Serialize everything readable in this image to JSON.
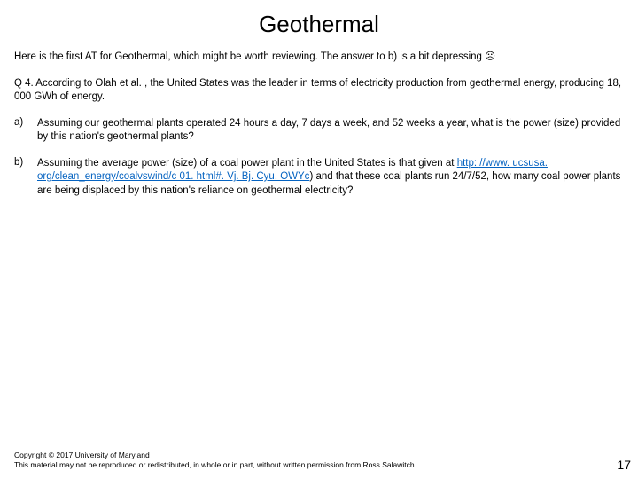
{
  "title": "Geothermal",
  "intro": "Here is the first AT for Geothermal, which might be worth reviewing.  The answer to b) is a bit depressing ☹",
  "question": "Q 4.  According to Olah et al. , the United States was the leader in terms of electricity production from geothermal energy, producing 18, 000 GWh of energy.",
  "partA": {
    "label": "a)",
    "text": "Assuming our geothermal plants operated 24 hours a day, 7 days a week, and 52 weeks a year, what is the power (size) provided by this nation's geothermal plants?"
  },
  "partB": {
    "label": "b)",
    "textBefore": " Assuming the average power (size) of a coal power plant in the United States is that given at ",
    "linkText": "http: //www. ucsusa. org/clean_energy/coalvswind/c 01. html#. Vj. Bj. Cyu. OWYc",
    "textAfter": ") and that these coal plants run 24/7/52, how many coal power plants are being displaced by this nation's reliance on geothermal electricity?"
  },
  "copyright1": "Copyright © 2017 University of Maryland",
  "copyright2": "This material may not be reproduced or redistributed, in whole or in part, without written permission from Ross Salawitch.",
  "pageNumber": "17"
}
